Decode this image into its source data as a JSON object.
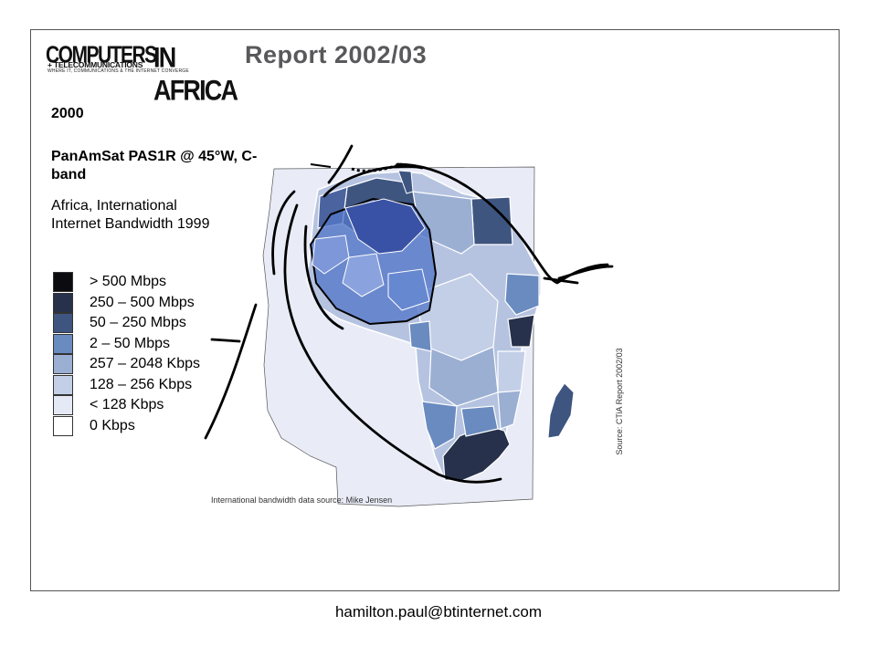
{
  "logo": {
    "brand_main": "COMPUTERS",
    "brand_sub": "+ TELECOMMUNICATIONS",
    "brand_tagline": "WHERE IT, COMMUNICATIONS & THE INTERNET CONVERGE",
    "brand_region": "IN AFRICA"
  },
  "report_title": "Report 2002/03",
  "year": "2000",
  "satellite_label": "PanAmSat PAS1R @ 45°W, C-band",
  "subtitle": "Africa, International Internet Bandwidth 1999",
  "legend": [
    {
      "label": "> 500 Mbps",
      "color": "#0c0c10"
    },
    {
      "label": "250 – 500 Mbps",
      "color": "#27314b"
    },
    {
      "label": "50 – 250 Mbps",
      "color": "#3e5580"
    },
    {
      "label": "2 – 50 Mbps",
      "color": "#6a8bc0"
    },
    {
      "label": "257 – 2048 Kbps",
      "color": "#9bafd3"
    },
    {
      "label": "128 – 256 Kbps",
      "color": "#c3cfe7"
    },
    {
      "label": "< 128 Kbps",
      "color": "#e4e9f5"
    },
    {
      "label": "0 Kbps",
      "color": "#ffffff"
    }
  ],
  "colors": {
    "sea": "#e9ecf7",
    "footprint_fill": "#5577c8",
    "coverage_line": "#000000",
    "title_gray": "#59595c"
  },
  "map_source": "International bandwidth data source: Mike Jensen",
  "report_source": "Source: CTiA Report 2002/03",
  "contact_email": "hamilton.paul@btinternet.com"
}
